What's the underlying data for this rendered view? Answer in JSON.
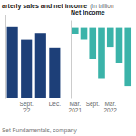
{
  "title": "arterly sales and net income",
  "subtitle": "(In trillion",
  "source": "Set Fundamentals, company",
  "chart_data": [
    {
      "type": "bar",
      "categories": [
        null,
        "Sept.\n'22",
        null,
        "Dec."
      ],
      "values": [
        85,
        70,
        78,
        60
      ],
      "color": "#1d3f78",
      "ylim": [
        0,
        100
      ],
      "tick_labels": "x"
    },
    {
      "type": "bar",
      "title": "Net Income",
      "categories": [
        "Mar.\n2021",
        null,
        "Sept.",
        null,
        "Mar.\n2022",
        null,
        null
      ],
      "values": [
        -1.5,
        -3,
        -8,
        -13,
        -5,
        -9,
        -15
      ],
      "color": "#3bb3a9",
      "ylim": [
        -18,
        2
      ],
      "tick_labels": "x"
    }
  ]
}
